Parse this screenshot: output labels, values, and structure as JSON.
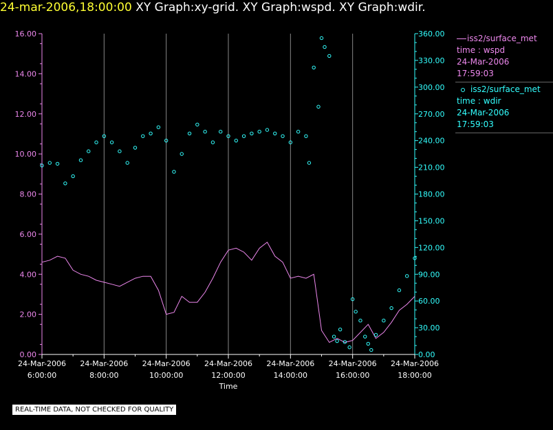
{
  "header": {
    "timestamp": "24-mar-2006,18:00:00",
    "graphs": "XY Graph:xy-grid.  XY Graph:wspd.  XY Graph:wdir."
  },
  "notice": "REAL-TIME DATA, NOT CHECKED FOR QUALITY",
  "legend": [
    {
      "name": "iss2/surface_met",
      "variable": "time : wspd",
      "date": "24-Mar-2006",
      "time": "17:59:03",
      "color": "#ee88ee",
      "style": "line"
    },
    {
      "name": "iss2/surface_met",
      "variable": "time : wdir",
      "date": "24-Mar-2006",
      "time": "17:59:03",
      "color": "#33ffff",
      "style": "marker"
    }
  ],
  "chart_data": {
    "type": "line",
    "title": "",
    "xlabel": "Time",
    "ylabel_left": "",
    "ylabel_right": "",
    "x_range_hours": [
      6.0,
      18.0
    ],
    "x_ticks": [
      {
        "date": "24-Mar-2006",
        "time": "6:00:00",
        "hour": 6
      },
      {
        "date": "24-Mar-2006",
        "time": "8:00:00",
        "hour": 8
      },
      {
        "date": "24-Mar-2006",
        "time": "10:00:00",
        "hour": 10
      },
      {
        "date": "24-Mar-2006",
        "time": "12:00:00",
        "hour": 12
      },
      {
        "date": "24-Mar-2006",
        "time": "14:00:00",
        "hour": 14
      },
      {
        "date": "24-Mar-2006",
        "time": "16:00:00",
        "hour": 16
      },
      {
        "date": "24-Mar-2006",
        "time": "18:00:00",
        "hour": 18
      }
    ],
    "y_left": {
      "min": 0,
      "max": 16,
      "ticks": [
        "0.00",
        "2.00",
        "4.00",
        "6.00",
        "8.00",
        "10.00",
        "12.00",
        "14.00",
        "16.00"
      ],
      "color": "#ee88ee"
    },
    "y_right": {
      "min": 0,
      "max": 360,
      "ticks": [
        "0.00",
        "30.00",
        "60.00",
        "90.00",
        "120.00",
        "150.00",
        "180.00",
        "210.00",
        "240.00",
        "270.00",
        "300.00",
        "330.00",
        "360.00"
      ],
      "color": "#33ffff"
    },
    "grid": {
      "vertical_at_major_x_ticks": true,
      "horizontal": false
    },
    "series": [
      {
        "name": "wspd",
        "axis": "left",
        "style": "line",
        "color": "#ee88ee",
        "x_hours": [
          6.0,
          6.25,
          6.5,
          6.75,
          7.0,
          7.25,
          7.5,
          7.75,
          8.0,
          8.25,
          8.5,
          8.75,
          9.0,
          9.25,
          9.5,
          9.75,
          10.0,
          10.25,
          10.5,
          10.75,
          11.0,
          11.25,
          11.5,
          11.75,
          12.0,
          12.25,
          12.5,
          12.75,
          13.0,
          13.25,
          13.5,
          13.75,
          14.0,
          14.25,
          14.5,
          14.75,
          15.0,
          15.25,
          15.5,
          15.75,
          16.0,
          16.25,
          16.5,
          16.75,
          17.0,
          17.25,
          17.5,
          17.75,
          18.0
        ],
        "values": [
          4.6,
          4.7,
          4.9,
          4.8,
          4.2,
          4.0,
          3.9,
          3.7,
          3.6,
          3.5,
          3.4,
          3.6,
          3.8,
          3.9,
          3.9,
          3.2,
          2.0,
          2.1,
          2.9,
          2.6,
          2.6,
          3.1,
          3.8,
          4.6,
          5.2,
          5.3,
          5.1,
          4.7,
          5.3,
          5.6,
          4.9,
          4.6,
          3.8,
          3.9,
          3.8,
          4.0,
          1.2,
          0.6,
          0.8,
          0.6,
          0.7,
          1.1,
          1.5,
          0.8,
          1.1,
          1.6,
          2.2,
          2.5,
          2.9
        ]
      },
      {
        "name": "wdir",
        "axis": "right",
        "style": "marker",
        "color": "#33ffff",
        "x_hours": [
          6.0,
          6.25,
          6.5,
          6.75,
          7.0,
          7.25,
          7.5,
          7.75,
          8.0,
          8.25,
          8.5,
          8.75,
          9.0,
          9.25,
          9.5,
          9.75,
          10.0,
          10.25,
          10.5,
          10.75,
          11.0,
          11.25,
          11.5,
          11.75,
          12.0,
          12.25,
          12.5,
          12.75,
          13.0,
          13.25,
          13.5,
          13.75,
          14.0,
          14.25,
          14.5,
          14.6,
          14.75,
          14.9,
          15.0,
          15.1,
          15.25,
          15.4,
          15.5,
          15.6,
          15.75,
          15.9,
          16.0,
          16.1,
          16.25,
          16.4,
          16.5,
          16.6,
          16.75,
          17.0,
          17.25,
          17.5,
          17.75,
          18.0
        ],
        "values": [
          212,
          215,
          214,
          192,
          200,
          218,
          228,
          238,
          245,
          238,
          228,
          215,
          232,
          245,
          248,
          255,
          240,
          205,
          225,
          248,
          258,
          250,
          238,
          250,
          245,
          240,
          245,
          248,
          250,
          252,
          248,
          245,
          238,
          250,
          245,
          215,
          322,
          278,
          355,
          345,
          335,
          20,
          15,
          28,
          14,
          8,
          62,
          48,
          38,
          20,
          12,
          5,
          22,
          38,
          52,
          72,
          88,
          108
        ]
      }
    ]
  }
}
